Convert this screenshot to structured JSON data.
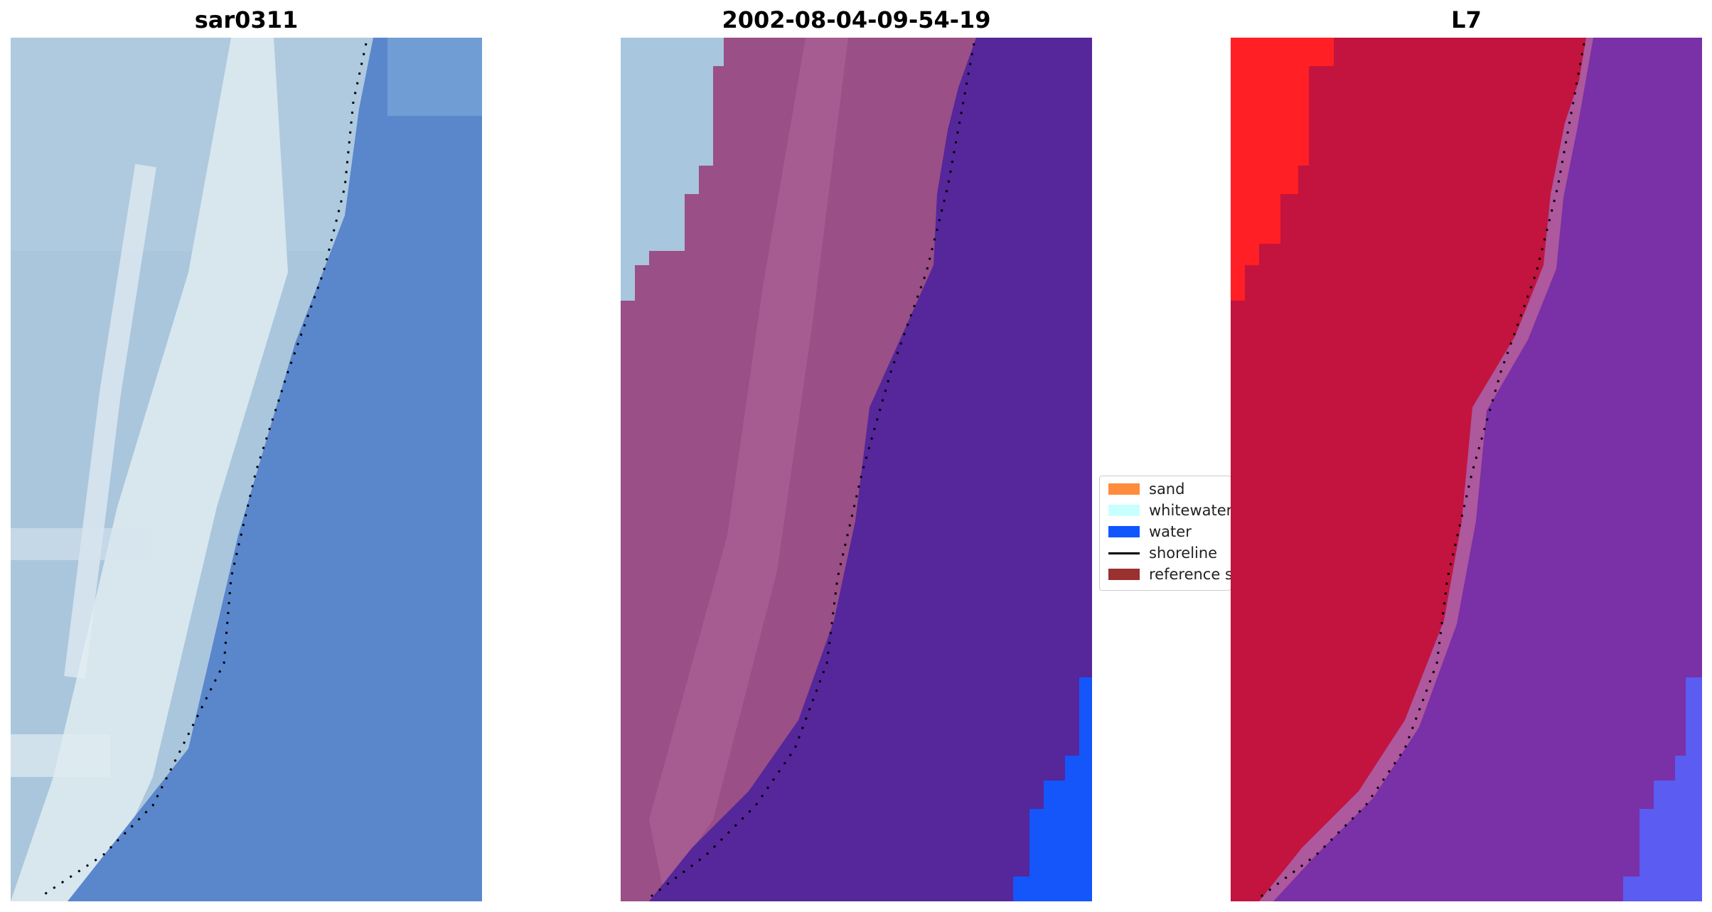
{
  "panels": [
    {
      "title": "sar0311"
    },
    {
      "title": "2002-08-04-09-54-19"
    },
    {
      "title": "L7"
    }
  ],
  "legend": {
    "items": [
      {
        "label": "sand",
        "color": "#ff8c3c",
        "kind": "patch"
      },
      {
        "label": "whitewater",
        "color": "#c8ffff",
        "kind": "patch"
      },
      {
        "label": "water",
        "color": "#0f56ff",
        "kind": "patch"
      },
      {
        "label": "shoreline",
        "color": "#000000",
        "kind": "line"
      },
      {
        "label": "reference shoreline",
        "color": "#9b3030",
        "kind": "patch"
      }
    ]
  },
  "colors": {
    "rgb_land": "#aac6dc",
    "rgb_whitewater": "#dde9ef",
    "rgb_water": "#5a86cc",
    "class_land": "#9a4f86",
    "class_whitewater": "#a8c6de",
    "class_water": "#56269b",
    "class_water_blue": "#1456fa",
    "swir_land": "#c2143e",
    "swir_red": "#ff1f24",
    "swir_water": "#7a30a6",
    "swir_blue": "#5a5cf2",
    "shoreline": "#000000"
  }
}
